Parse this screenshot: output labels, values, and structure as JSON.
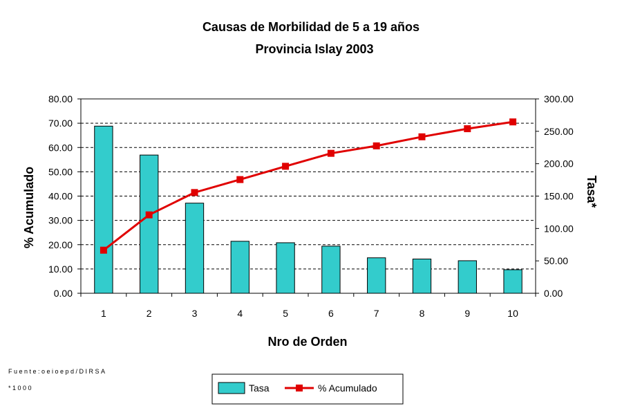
{
  "chart_data": {
    "type": "bar",
    "title": "Causas de Morbilidad de 5 a 19  años",
    "subtitle": "Provincia Islay 2003",
    "xlabel": "Nro de Orden",
    "ylabel_left": "% Acumulado",
    "ylabel_right": "Tasa*",
    "categories": [
      "1",
      "2",
      "3",
      "4",
      "5",
      "6",
      "7",
      "8",
      "9",
      "10"
    ],
    "ylim_left": [
      0,
      80
    ],
    "ylim_right": [
      0,
      300
    ],
    "yticks_left": [
      "0.00",
      "10.00",
      "20.00",
      "30.00",
      "40.00",
      "50.00",
      "60.00",
      "70.00",
      "80.00"
    ],
    "yticks_right": [
      "0.00",
      "50.00",
      "100.00",
      "150.00",
      "200.00",
      "250.00",
      "300.00"
    ],
    "grid": true,
    "legend_position": "bottom-center",
    "series": [
      {
        "name": "Tasa",
        "type": "bar",
        "axis": "left",
        "color": "#33CCCC",
        "values": [
          68.8,
          56.9,
          37.1,
          21.4,
          20.8,
          19.4,
          14.6,
          14.1,
          13.4,
          9.7
        ]
      },
      {
        "name": "% Acumulado",
        "type": "line",
        "axis": "right",
        "color": "#E00000",
        "values": [
          66.5,
          121.0,
          155.5,
          175.5,
          196.0,
          216.0,
          227.5,
          241.5,
          254.0,
          264.5
        ]
      }
    ]
  },
  "footnotes": {
    "source": "Fuente:oeioepd/DIRSA",
    "note": "*1000"
  }
}
